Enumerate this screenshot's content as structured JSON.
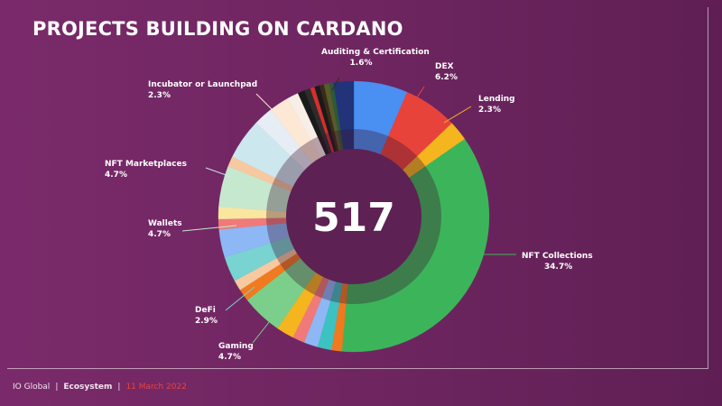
{
  "title": "PROJECTS BUILDING ON CARDANO",
  "center_value": "517",
  "footer": {
    "org": "IO Global",
    "section": "Ecosystem",
    "date": "11 March 2022"
  },
  "chart_data": {
    "type": "pie",
    "donut": true,
    "total": "517",
    "labeled_slices": [
      {
        "name": "Auditing & Certification",
        "value": 1.6,
        "label": "1.6%",
        "color": "#3a2a1a"
      },
      {
        "name": "DEX",
        "value": 6.2,
        "label": "6.2%",
        "color": "#e8433a"
      },
      {
        "name": "Lending",
        "value": 2.3,
        "label": "2.3%",
        "color": "#f5b51e"
      },
      {
        "name": "NFT Collections",
        "value": 34.7,
        "label": "34.7%",
        "color": "#3cb55a"
      },
      {
        "name": "Gaming",
        "value": 4.7,
        "label": "4.7%",
        "color": "#7ccf8a"
      },
      {
        "name": "DeFi",
        "value": 2.9,
        "label": "2.9%",
        "color": "#79d3d0"
      },
      {
        "name": "Wallets",
        "value": 4.7,
        "label": "4.7%",
        "color": "#c6e8cf"
      },
      {
        "name": "NFT Marketplaces",
        "value": 4.7,
        "label": "4.7%",
        "color": "#cde7ef"
      },
      {
        "name": "Incubator or Launchpad",
        "value": 2.3,
        "label": "2.3%",
        "color": "#fde8d6"
      }
    ],
    "colors": {
      "blue": "#4a8ff2",
      "red": "#e8433a",
      "yellow": "#f5b51e",
      "green": "#3cb55a",
      "orange": "#f07a1f",
      "teal": "#3cc2c0",
      "lightblue": "#8db8f5",
      "pink": "#f07a7a",
      "peach": "#f6c9a0",
      "lightyellow": "#f9e7a0",
      "dark": "#1a1a1a",
      "navy": "#22337a"
    }
  }
}
